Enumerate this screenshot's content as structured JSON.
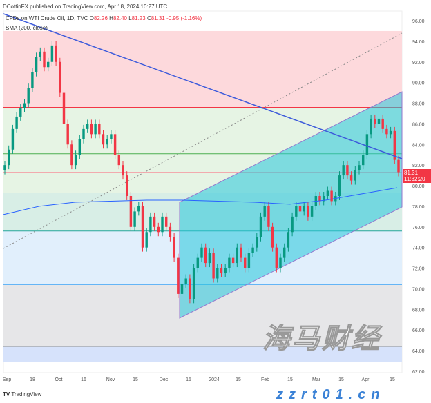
{
  "header": {
    "published": "DCottinFX published on TradingView.com, Apr 18, 2024 10:27 UTC"
  },
  "legend": {
    "symbol": "CFDs on WTI Crude Oil, 1D, TVC",
    "o_label": "O",
    "o": "82.26",
    "h_label": "H",
    "h": "82.40",
    "l_label": "L",
    "l": "81.23",
    "c_label": "C",
    "c": "81.31",
    "change": "-0.95 (-1.16%)",
    "sma": "SMA (200, close)"
  },
  "price_tag": {
    "price": "81.31",
    "countdown": "11:32:20"
  },
  "footer": {
    "brand": "TradingView"
  },
  "watermark": {
    "cn": "海马财经",
    "url": "zzrt01.cn"
  },
  "colors": {
    "up": "#089981",
    "down": "#f23645",
    "trendline": "#3d5bdb",
    "sma": "#2962ff",
    "channel": "#26c6da"
  },
  "chart_data": {
    "type": "candlestick",
    "ylim": [
      62,
      97
    ],
    "y_ticks": [
      "96.00",
      "94.00",
      "92.00",
      "90.00",
      "88.00",
      "86.00",
      "84.00",
      "82.00",
      "80.00",
      "78.00",
      "76.00",
      "74.00",
      "72.00",
      "70.00",
      "68.00",
      "66.00",
      "64.00",
      "62.00"
    ],
    "x_ticks": [
      "Sep",
      "18",
      "Oct",
      "16",
      "Nov",
      "15",
      "Dec",
      "15",
      "2024",
      "15",
      "Feb",
      "15",
      "Mar",
      "15",
      "Apr",
      "15"
    ],
    "closes": [
      82,
      83.5,
      85.5,
      86.7,
      87.5,
      88,
      89.5,
      91,
      92.5,
      93,
      91.5,
      92,
      93.6,
      92,
      89,
      86,
      84,
      82,
      83,
      84.5,
      85.5,
      86,
      85,
      86,
      85,
      84,
      84.5,
      85,
      83,
      82,
      81,
      79,
      76,
      77.5,
      78,
      74,
      75.5,
      77,
      76,
      75.5,
      77,
      76,
      75,
      73,
      69.5,
      70.5,
      71,
      69,
      72,
      73,
      74,
      72.5,
      73.5,
      71,
      72,
      71.5,
      72,
      73,
      72.5,
      74,
      73,
      72,
      73.5,
      74,
      75,
      77,
      78,
      76,
      74,
      72,
      73,
      74,
      75.5,
      77,
      78,
      77.5,
      78,
      77,
      78,
      79,
      78.5,
      79,
      79.5,
      78.5,
      79,
      81,
      82,
      81,
      80.5,
      81.5,
      82,
      83,
      85,
      86.5,
      86,
      86.5,
      85.5,
      85,
      85.3,
      82.5,
      81.31
    ],
    "sma_200": [
      77.2,
      78,
      78.4,
      78.5,
      78.6,
      78.6,
      78.5,
      78.4,
      78.2,
      78.6,
      79.2,
      79.8
    ],
    "zones": [
      {
        "from": 95,
        "to": 87.6,
        "color": "#fdd9dc"
      },
      {
        "from": 87.6,
        "to": 79.3,
        "color": "#e6f4e4"
      },
      {
        "from": 79.3,
        "to": 75.6,
        "color": "#d8eee6"
      },
      {
        "from": 75.6,
        "to": 70.4,
        "color": "#e1effc"
      },
      {
        "from": 70.4,
        "to": 64.4,
        "color": "#e6e6e8"
      },
      {
        "from": 64.4,
        "to": 62.9,
        "color": "#d6e2fb"
      }
    ],
    "levels": [
      87.6,
      83.1,
      81.3,
      79.3,
      75.6,
      70.4,
      64.4
    ]
  }
}
